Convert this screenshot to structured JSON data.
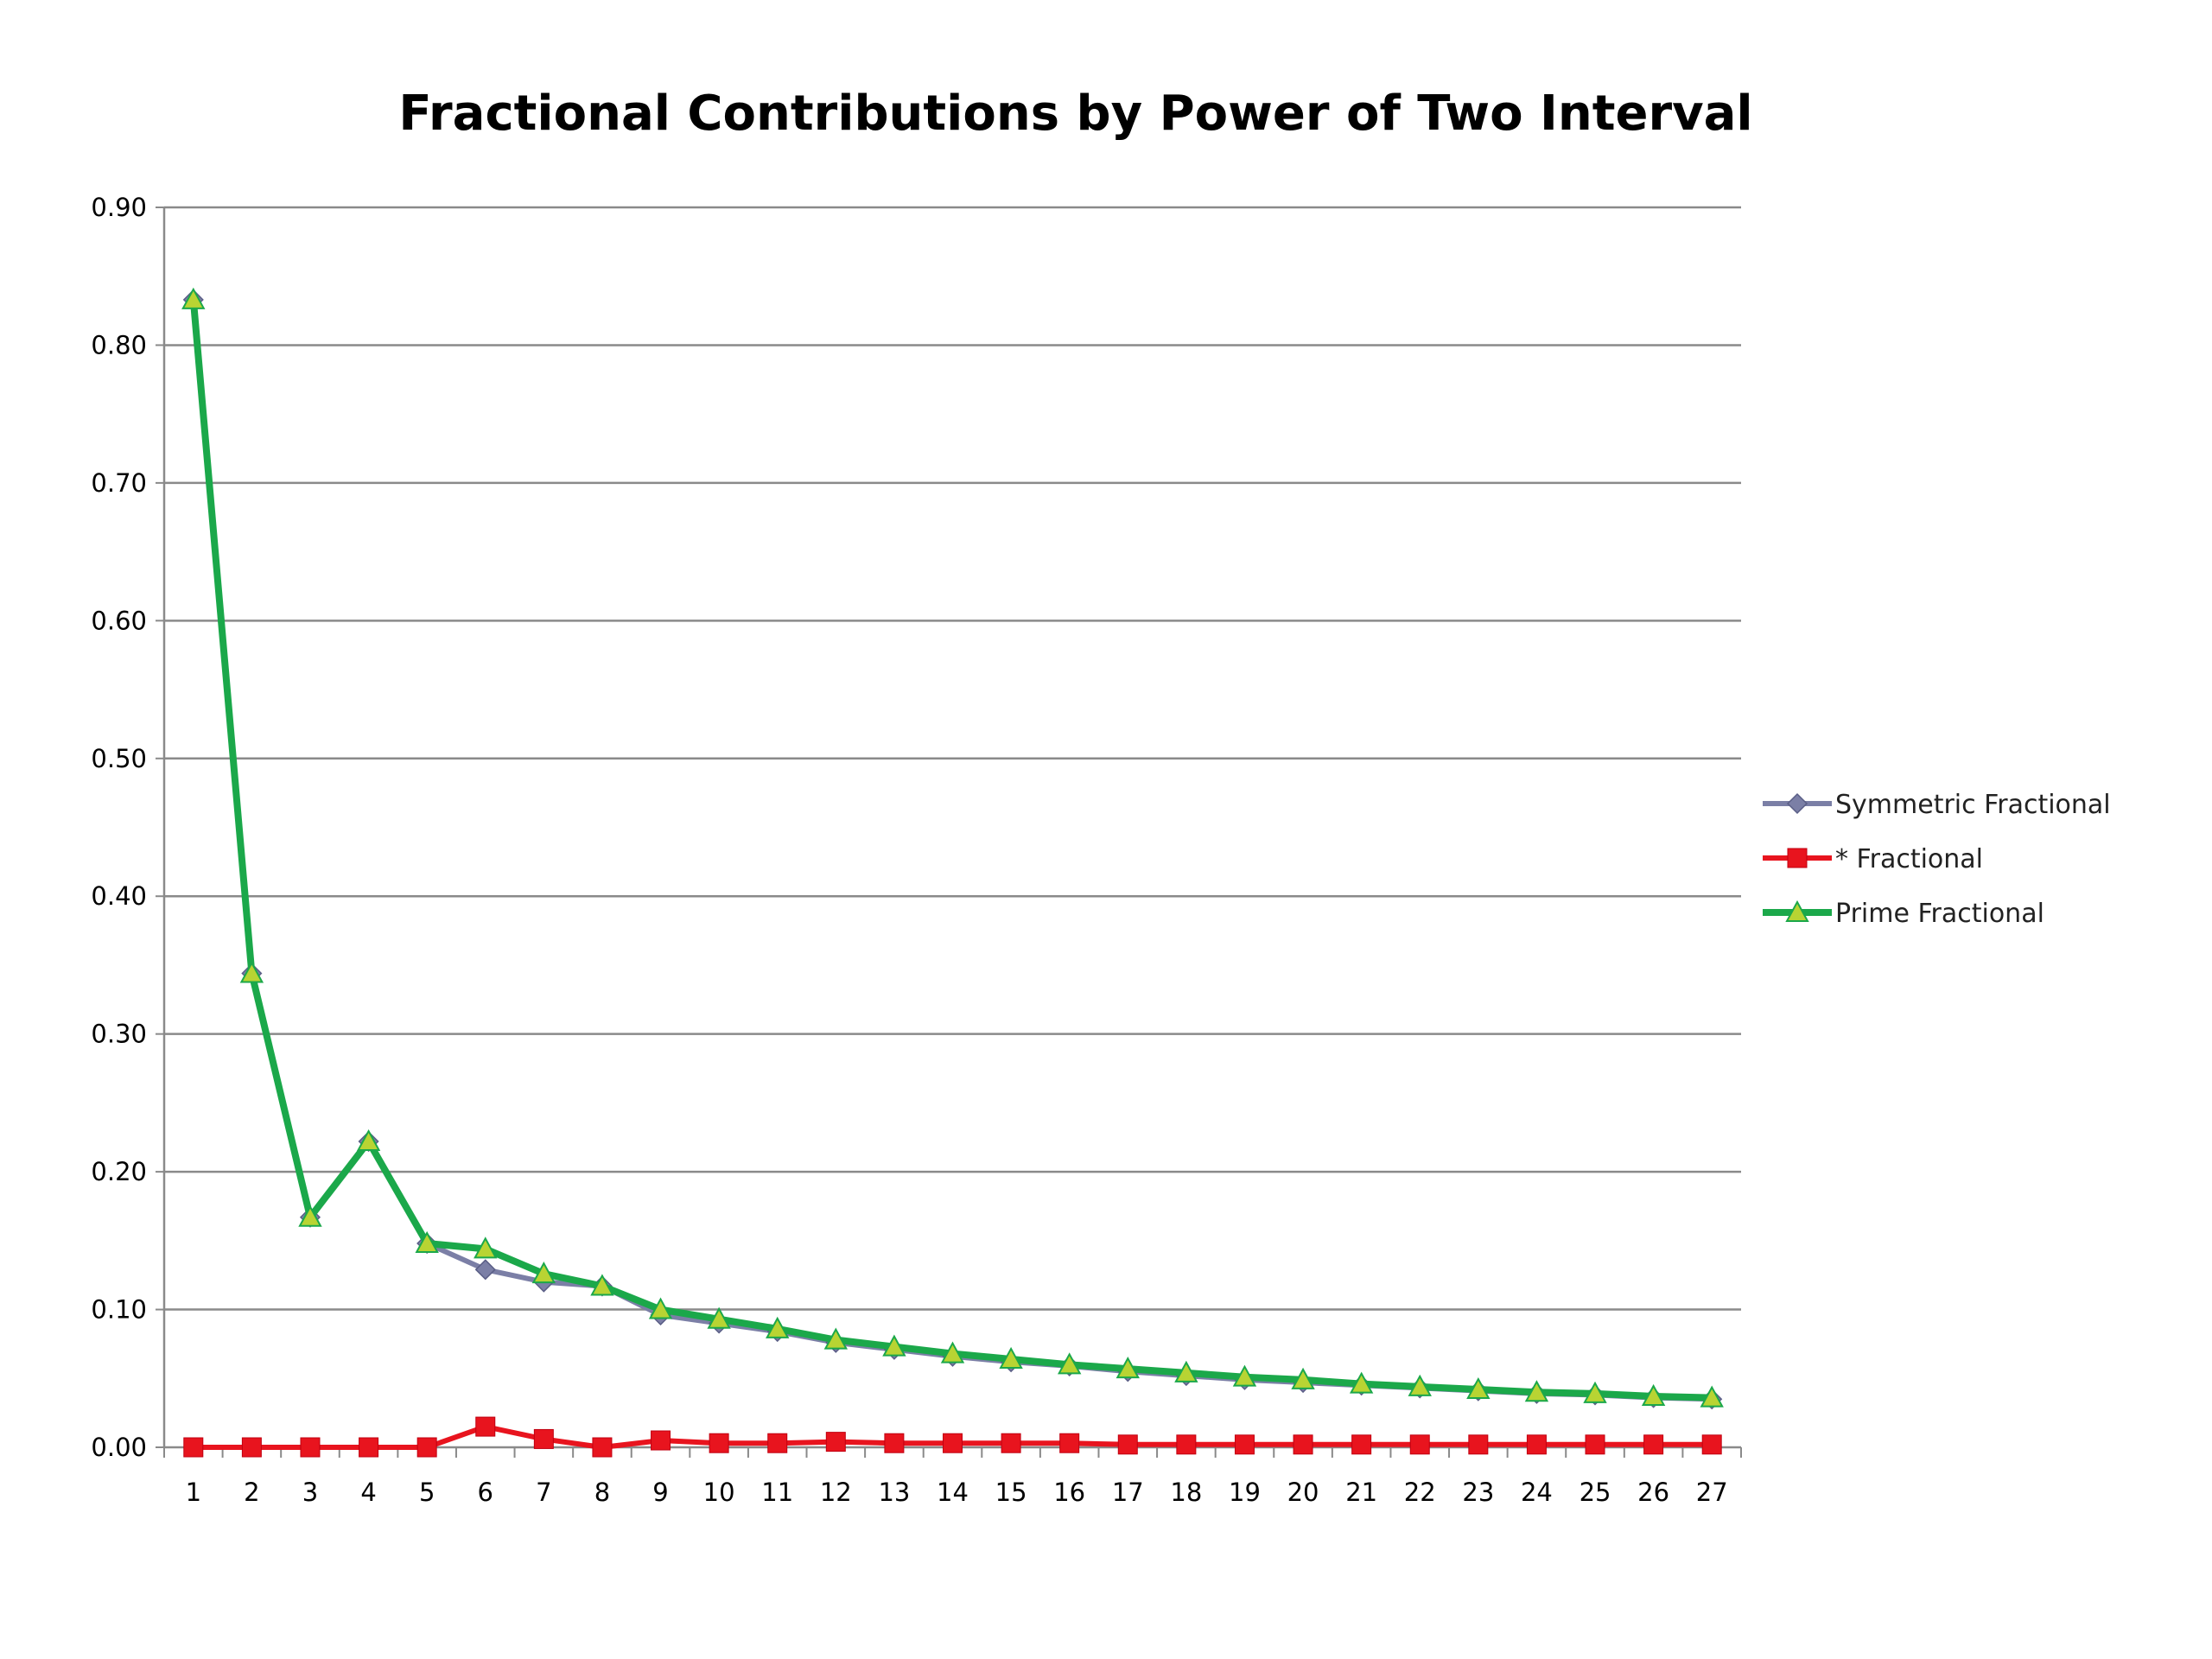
{
  "chart_data": {
    "type": "line",
    "title": "Fractional Contributions by Power of Two Interval",
    "xlabel": "",
    "ylabel": "",
    "x": [
      "1",
      "2",
      "3",
      "4",
      "5",
      "6",
      "7",
      "8",
      "9",
      "10",
      "11",
      "12",
      "13",
      "14",
      "15",
      "16",
      "17",
      "18",
      "19",
      "20",
      "21",
      "22",
      "23",
      "24",
      "25",
      "26",
      "27"
    ],
    "ylim": [
      0,
      0.9
    ],
    "yticks": [
      "0.00",
      "0.10",
      "0.20",
      "0.30",
      "0.40",
      "0.50",
      "0.60",
      "0.70",
      "0.80",
      "0.90"
    ],
    "grid": true,
    "legend_position": "right",
    "series": [
      {
        "name": "Symmetric Fractional",
        "color": "#7B7FA6",
        "marker": "diamond",
        "values": [
          0.833,
          0.344,
          0.167,
          0.222,
          0.148,
          0.129,
          0.12,
          0.117,
          0.096,
          0.09,
          0.084,
          0.076,
          0.071,
          0.066,
          0.062,
          0.059,
          0.055,
          0.052,
          0.049,
          0.047,
          0.045,
          0.043,
          0.041,
          0.039,
          0.038,
          0.036,
          0.035
        ]
      },
      {
        "name": "* Fractional",
        "color": "#E8141E",
        "marker": "square",
        "values": [
          0.0,
          0.0,
          0.0,
          0.0,
          0.0,
          0.015,
          0.006,
          0.0,
          0.005,
          0.003,
          0.003,
          0.004,
          0.003,
          0.003,
          0.003,
          0.003,
          0.002,
          0.002,
          0.002,
          0.002,
          0.002,
          0.002,
          0.002,
          0.002,
          0.002,
          0.002,
          0.002
        ]
      },
      {
        "name": "Prime Fractional",
        "color": "#1BA84A",
        "marker_fill": "#B8D433",
        "marker": "triangle",
        "values": [
          0.833,
          0.344,
          0.167,
          0.222,
          0.148,
          0.144,
          0.126,
          0.117,
          0.1,
          0.093,
          0.086,
          0.078,
          0.073,
          0.068,
          0.064,
          0.06,
          0.057,
          0.054,
          0.051,
          0.049,
          0.046,
          0.044,
          0.042,
          0.04,
          0.039,
          0.037,
          0.036
        ]
      }
    ]
  }
}
